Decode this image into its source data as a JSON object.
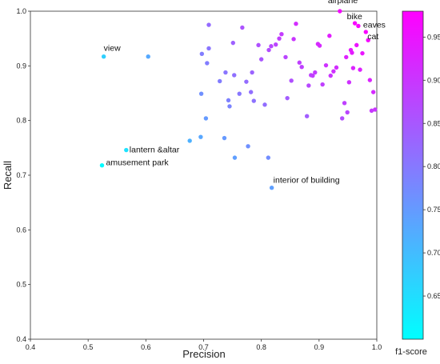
{
  "chart_data": {
    "type": "scatter",
    "xlabel": "Precision",
    "ylabel": "Recall",
    "xlim": [
      0.4,
      1.0
    ],
    "ylim": [
      0.4,
      1.0
    ],
    "xticks": [
      "0.4",
      "0.5",
      "0.6",
      "0.7",
      "0.8",
      "0.9",
      "1.0"
    ],
    "yticks": [
      "0.4",
      "0.5",
      "0.6",
      "0.7",
      "0.8",
      "0.9",
      "1.0"
    ],
    "grid": false,
    "colorbar": {
      "label": "f1-score",
      "range": [
        0.6,
        0.98
      ],
      "ticks": [
        "0.65",
        "0.70",
        "0.75",
        "0.80",
        "0.85",
        "0.90",
        "0.95"
      ],
      "colormap": "cool",
      "color_low": "#00ffff",
      "color_high": "#ff00ff"
    },
    "annotations": [
      {
        "text": "view",
        "x": 0.527,
        "y": 0.917
      },
      {
        "text": "lantern &altar",
        "x": 0.566,
        "y": 0.746
      },
      {
        "text": "amusement park",
        "x": 0.524,
        "y": 0.718
      },
      {
        "text": "interior of building",
        "x": 0.818,
        "y": 0.677
      },
      {
        "text": "airplane",
        "x": 0.936,
        "y": 1.0
      },
      {
        "text": "bike",
        "x": 0.962,
        "y": 0.978
      },
      {
        "text": "eaves",
        "x": 0.968,
        "y": 0.973
      },
      {
        "text": "cat",
        "x": 0.981,
        "y": 0.962
      }
    ],
    "points": [
      [
        0.527,
        0.917
      ],
      [
        0.604,
        0.917
      ],
      [
        0.566,
        0.746
      ],
      [
        0.524,
        0.718
      ],
      [
        0.818,
        0.677
      ],
      [
        0.676,
        0.763
      ],
      [
        0.695,
        0.77
      ],
      [
        0.704,
        0.804
      ],
      [
        0.754,
        0.732
      ],
      [
        0.777,
        0.753
      ],
      [
        0.812,
        0.732
      ],
      [
        0.736,
        0.768
      ],
      [
        0.696,
        0.849
      ],
      [
        0.697,
        0.922
      ],
      [
        0.706,
        0.905
      ],
      [
        0.709,
        0.975
      ],
      [
        0.709,
        0.932
      ],
      [
        0.728,
        0.872
      ],
      [
        0.738,
        0.888
      ],
      [
        0.743,
        0.837
      ],
      [
        0.745,
        0.826
      ],
      [
        0.751,
        0.942
      ],
      [
        0.753,
        0.883
      ],
      [
        0.762,
        0.849
      ],
      [
        0.767,
        0.97
      ],
      [
        0.774,
        0.871
      ],
      [
        0.782,
        0.852
      ],
      [
        0.784,
        0.888
      ],
      [
        0.787,
        0.836
      ],
      [
        0.795,
        0.938
      ],
      [
        0.8,
        0.912
      ],
      [
        0.806,
        0.829
      ],
      [
        0.813,
        0.929
      ],
      [
        0.817,
        0.936
      ],
      [
        0.825,
        0.939
      ],
      [
        0.831,
        0.95
      ],
      [
        0.835,
        0.958
      ],
      [
        0.842,
        0.916
      ],
      [
        0.845,
        0.841
      ],
      [
        0.852,
        0.873
      ],
      [
        0.856,
        0.949
      ],
      [
        0.86,
        0.977
      ],
      [
        0.866,
        0.906
      ],
      [
        0.87,
        0.898
      ],
      [
        0.879,
        0.808
      ],
      [
        0.882,
        0.864
      ],
      [
        0.886,
        0.883
      ],
      [
        0.889,
        0.882
      ],
      [
        0.893,
        0.888
      ],
      [
        0.898,
        0.94
      ],
      [
        0.901,
        0.937
      ],
      [
        0.906,
        0.866
      ],
      [
        0.912,
        0.901
      ],
      [
        0.918,
        0.955
      ],
      [
        0.92,
        0.882
      ],
      [
        0.925,
        0.89
      ],
      [
        0.93,
        0.897
      ],
      [
        0.936,
        1.0
      ],
      [
        0.94,
        0.804
      ],
      [
        0.944,
        0.832
      ],
      [
        0.947,
        0.916
      ],
      [
        0.949,
        0.815
      ],
      [
        0.952,
        0.87
      ],
      [
        0.955,
        0.929
      ],
      [
        0.957,
        0.924
      ],
      [
        0.959,
        0.896
      ],
      [
        0.962,
        0.978
      ],
      [
        0.965,
        0.938
      ],
      [
        0.968,
        0.973
      ],
      [
        0.971,
        0.893
      ],
      [
        0.975,
        0.923
      ],
      [
        0.981,
        0.962
      ],
      [
        0.985,
        0.947
      ],
      [
        0.988,
        0.874
      ],
      [
        0.991,
        0.818
      ],
      [
        0.994,
        0.852
      ],
      [
        0.997,
        0.82
      ]
    ]
  }
}
